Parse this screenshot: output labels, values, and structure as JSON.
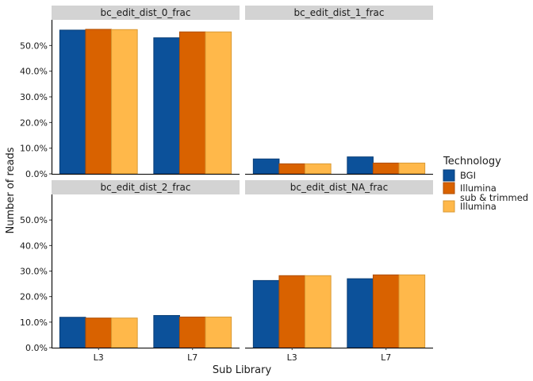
{
  "chart_data": {
    "type": "bar",
    "xlabel": "Sub Library",
    "ylabel": "Number of reads",
    "categories": [
      "L3",
      "L7"
    ],
    "ylim": [
      0,
      60
    ],
    "yticks": [
      "0.0%",
      "10.0%",
      "20.0%",
      "30.0%",
      "40.0%",
      "50.0%"
    ],
    "ytick_values": [
      0,
      10,
      20,
      30,
      40,
      50
    ],
    "legend": {
      "title": "Technology",
      "placement": "right",
      "items": [
        {
          "label": "BGI",
          "color": "#0c519a",
          "border": "#0a3f78"
        },
        {
          "label": "Illumina\nsub & trimmed",
          "color": "#d96200",
          "border": "#b04e00"
        },
        {
          "label": "Illumina",
          "color": "#ffb84a",
          "border": "#d99a35"
        }
      ]
    },
    "panels": [
      {
        "title": "bc_edit_dist_0_frac",
        "series": [
          {
            "name": "BGI",
            "values": [
              56.0,
              53.0
            ]
          },
          {
            "name": "Illumina sub & trimmed",
            "values": [
              56.3,
              55.3
            ]
          },
          {
            "name": "Illumina",
            "values": [
              56.2,
              55.3
            ]
          }
        ]
      },
      {
        "title": "bc_edit_dist_1_frac",
        "series": [
          {
            "name": "BGI",
            "values": [
              5.8,
              6.6
            ]
          },
          {
            "name": "Illumina sub & trimmed",
            "values": [
              3.9,
              4.2
            ]
          },
          {
            "name": "Illumina",
            "values": [
              3.9,
              4.2
            ]
          }
        ]
      },
      {
        "title": "bc_edit_dist_2_frac",
        "series": [
          {
            "name": "BGI",
            "values": [
              11.9,
              12.6
            ]
          },
          {
            "name": "Illumina sub & trimmed",
            "values": [
              11.6,
              12.0
            ]
          },
          {
            "name": "Illumina",
            "values": [
              11.6,
              12.0
            ]
          }
        ]
      },
      {
        "title": "bc_edit_dist_NA_frac",
        "series": [
          {
            "name": "BGI",
            "values": [
              26.3,
              27.0
            ]
          },
          {
            "name": "Illumina sub & trimmed",
            "values": [
              28.2,
              28.5
            ]
          },
          {
            "name": "Illumina",
            "values": [
              28.2,
              28.5
            ]
          }
        ]
      }
    ]
  }
}
